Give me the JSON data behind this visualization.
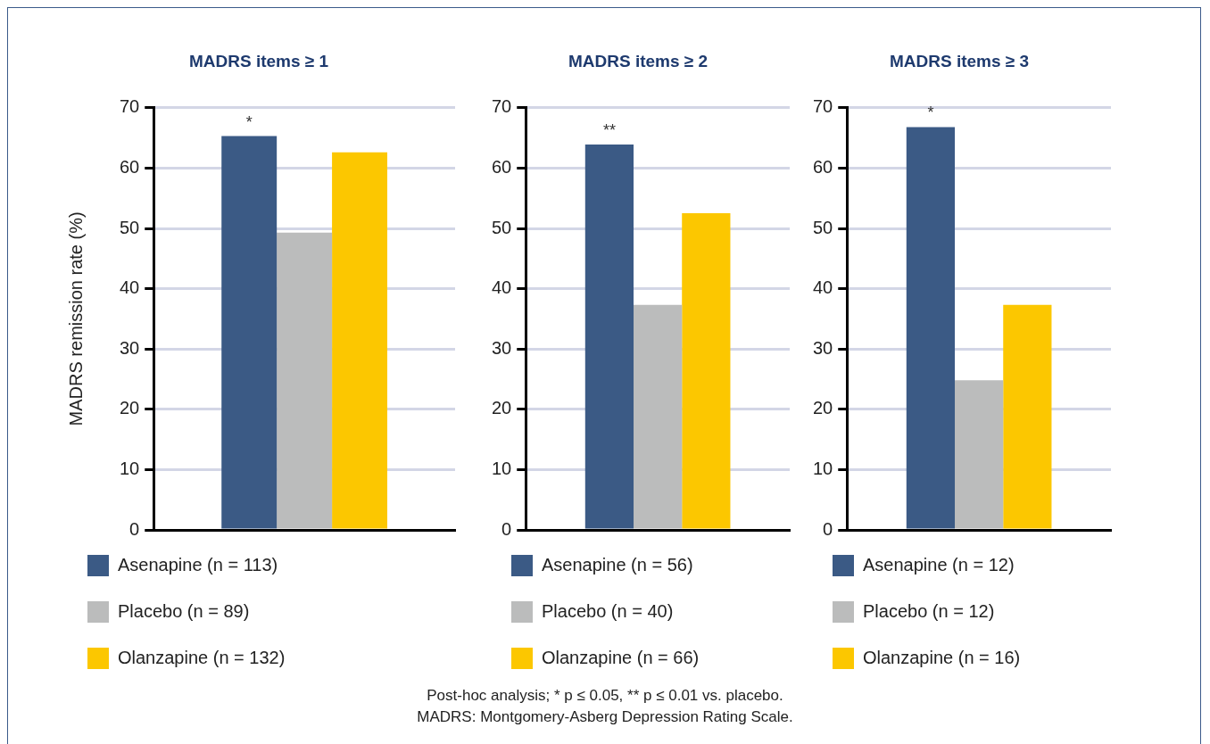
{
  "chart_data": [
    {
      "type": "bar",
      "title": "MADRS items ≥ 1",
      "ylabel": "MADRS remission rate (%)",
      "categories": [
        null
      ],
      "series": [
        {
          "name": "Asenapine (n = 113)",
          "color": "#3b5a85",
          "values": [
            65.3
          ]
        },
        {
          "name": "Placebo (n = 89)",
          "color": "#bbbcbc",
          "values": [
            49.3
          ]
        },
        {
          "name": "Olanzapine (n = 132)",
          "color": "#fcc700",
          "values": [
            62.6
          ]
        }
      ],
      "ylim": [
        0,
        70
      ],
      "yticks": [
        0,
        10,
        20,
        30,
        40,
        50,
        60,
        70
      ],
      "grid": "y",
      "legend": "bottom",
      "annotations": [
        {
          "text": "*",
          "y": 65.3
        }
      ]
    },
    {
      "type": "bar",
      "title": "MADRS items ≥ 2",
      "categories": [
        null
      ],
      "series": [
        {
          "name": "Asenapine (n = 56)",
          "color": "#3b5a85",
          "values": [
            63.9
          ]
        },
        {
          "name": "Placebo (n = 40)",
          "color": "#bbbcbc",
          "values": [
            37.3
          ]
        },
        {
          "name": "Olanzapine (n = 66)",
          "color": "#fcc700",
          "values": [
            52.5
          ]
        }
      ],
      "ylim": [
        0,
        70
      ],
      "yticks": [
        0,
        10,
        20,
        30,
        40,
        50,
        60,
        70
      ],
      "grid": "y",
      "legend": "bottom",
      "annotations": [
        {
          "text": "**",
          "y": 63.9
        }
      ]
    },
    {
      "type": "bar",
      "title": "MADRS items ≥ 3",
      "categories": [
        null
      ],
      "series": [
        {
          "name": "Asenapine (n = 12)",
          "color": "#3b5a85",
          "values": [
            66.8
          ]
        },
        {
          "name": "Placebo (n = 12)",
          "color": "#bbbcbc",
          "values": [
            24.8
          ]
        },
        {
          "name": "Olanzapine (n = 16)",
          "color": "#fcc700",
          "values": [
            37.3
          ]
        }
      ],
      "ylim": [
        0,
        70
      ],
      "yticks": [
        0,
        10,
        20,
        30,
        40,
        50,
        60,
        70
      ],
      "grid": "y",
      "legend": "bottom",
      "annotations": [
        {
          "text": "*",
          "y": 66.8
        },
        "Post-hoc analysis; * p ≤ 0.05, ** p ≤ 0.01 vs. placebo.",
        "MADRS: Montgomery-Asberg Depression Rating Scale."
      ]
    }
  ]
}
